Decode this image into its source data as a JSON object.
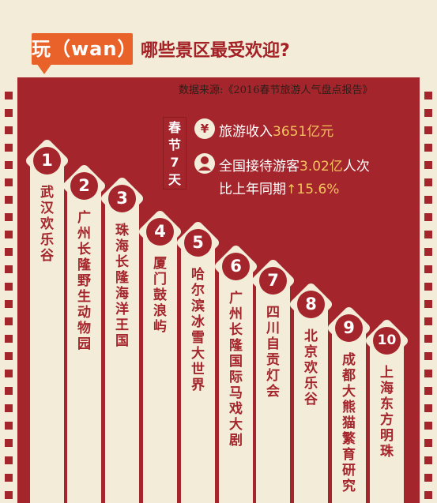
{
  "header": {
    "badge": "玩（wan）",
    "title": "哪些景区最受欢迎?",
    "source": "数据来源:《2016春节旅游人气盘点报告》"
  },
  "spring_label": [
    "春",
    "节",
    "7",
    "天"
  ],
  "stats": {
    "income_icon": "yen-icon",
    "income_prefix": "旅游收入",
    "income_value": "3651亿元",
    "visitors_icon": "person-icon",
    "visitors_prefix": "全国接待游客",
    "visitors_value": "3.02亿",
    "visitors_suffix": "人次",
    "yoy_prefix": "比上年同期",
    "yoy_value": "15.6%"
  },
  "ranking": [
    {
      "rank": "1",
      "name": "武汉欢乐谷"
    },
    {
      "rank": "2",
      "name": "广州长隆野生动物园"
    },
    {
      "rank": "3",
      "name": "珠海长隆海洋王国"
    },
    {
      "rank": "4",
      "name": "厦门鼓浪屿"
    },
    {
      "rank": "5",
      "name": "哈尔滨冰雪大世界"
    },
    {
      "rank": "6",
      "name": "广州长隆国际马戏大剧"
    },
    {
      "rank": "7",
      "name": "四川自贡灯会"
    },
    {
      "rank": "8",
      "name": "北京欢乐谷"
    },
    {
      "rank": "9",
      "name": "成都大熊猫繁育研究"
    },
    {
      "rank": "10",
      "name": "上海东方明珠"
    }
  ]
}
